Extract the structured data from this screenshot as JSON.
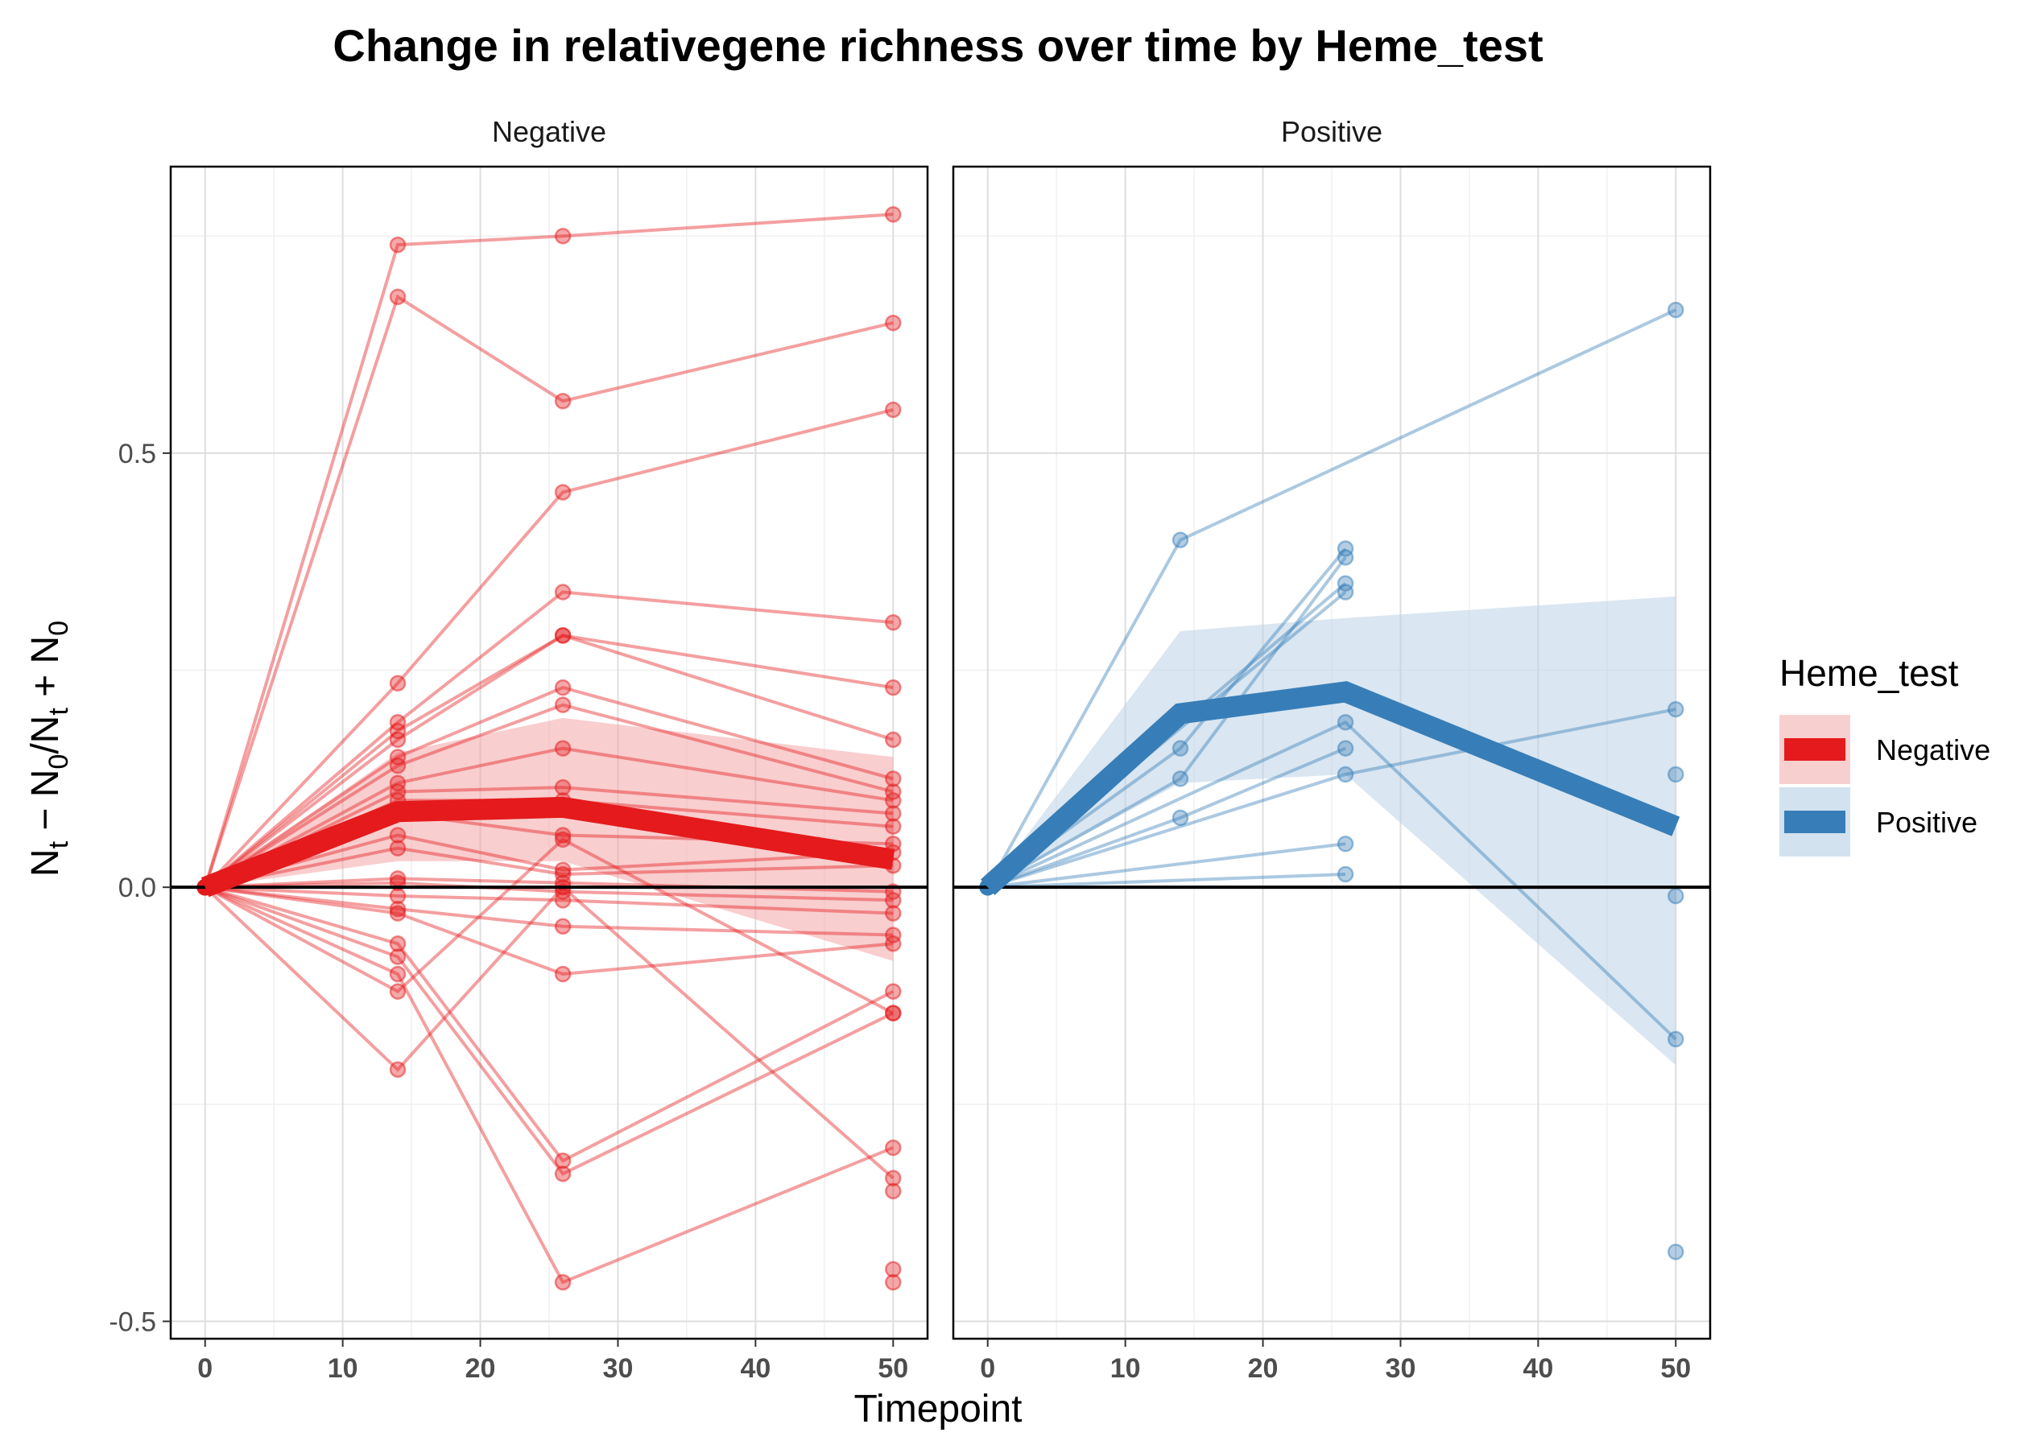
{
  "chart_data": {
    "type": "line",
    "title": "Change in relativegene richness over time by Heme_test",
    "xlabel": "Timepoint",
    "ylabel": "N_t − N_0/N_t + N_0",
    "ylabel_parts": {
      "n": "N",
      "t": "t",
      "zero": "0",
      "minus": " − ",
      "slash": "/",
      "plus": " + "
    },
    "xlim": [
      -2.5,
      52.5
    ],
    "ylim": [
      -0.52,
      0.83
    ],
    "x_ticks": [
      0,
      10,
      20,
      30,
      40,
      50
    ],
    "x_tick_labels": [
      "0",
      "10",
      "20",
      "30",
      "40",
      "50"
    ],
    "y_ticks": [
      -0.5,
      0.0,
      0.5
    ],
    "y_tick_labels": [
      "-0.5",
      "0.0",
      "0.5"
    ],
    "y_minor_ticks": [
      -0.25,
      0.25,
      0.75
    ],
    "x_minor_ticks": [
      5,
      15,
      25,
      35,
      45
    ],
    "reference_line_y": 0,
    "grid": true,
    "legend": {
      "title": "Heme_test",
      "position": "right",
      "entries": [
        {
          "label": "Negative",
          "color": "#E41A1C",
          "fill": "#F8CFCF"
        },
        {
          "label": "Positive",
          "color": "#377EB8",
          "fill": "#D3E2EF"
        }
      ]
    },
    "panels": [
      {
        "name": "Negative",
        "color": "#E41A1C",
        "band_color": "#F4A6A7",
        "mean": {
          "x": [
            0,
            14,
            26,
            50
          ],
          "y": [
            0.0,
            0.087,
            0.092,
            0.032
          ]
        },
        "band": {
          "x": [
            0,
            14,
            26,
            50
          ],
          "lower": [
            0.0,
            0.03,
            0.03,
            -0.085
          ],
          "upper": [
            0.0,
            0.155,
            0.195,
            0.15
          ]
        },
        "subjects": [
          {
            "x": [
              0,
              14,
              26,
              50
            ],
            "y": [
              0,
              0.74,
              0.75,
              0.775
            ]
          },
          {
            "x": [
              0,
              14,
              26,
              50
            ],
            "y": [
              0,
              0.68,
              0.56,
              0.65
            ]
          },
          {
            "x": [
              0,
              14,
              26,
              50
            ],
            "y": [
              0,
              0.235,
              0.455,
              0.55
            ]
          },
          {
            "x": [
              0,
              14,
              26,
              50
            ],
            "y": [
              0,
              0.19,
              0.34,
              0.305
            ]
          },
          {
            "x": [
              0,
              14,
              26,
              50
            ],
            "y": [
              0,
              0.18,
              0.29,
              0.23
            ]
          },
          {
            "x": [
              0,
              14,
              26,
              50
            ],
            "y": [
              0,
              0.17,
              0.29,
              0.17
            ]
          },
          {
            "x": [
              0,
              14,
              26,
              50
            ],
            "y": [
              0,
              0.15,
              0.23,
              0.125
            ]
          },
          {
            "x": [
              0,
              14,
              26,
              50
            ],
            "y": [
              0,
              0.14,
              0.21,
              0.11
            ]
          },
          {
            "x": [
              0,
              14,
              26,
              50
            ],
            "y": [
              0,
              0.12,
              0.16,
              0.1
            ]
          },
          {
            "x": [
              0,
              14,
              26,
              50
            ],
            "y": [
              0,
              0.11,
              0.115,
              0.085
            ]
          },
          {
            "x": [
              0,
              14,
              26,
              50
            ],
            "y": [
              0,
              0.1,
              0.1,
              0.07
            ]
          },
          {
            "x": [
              0,
              14,
              26,
              50
            ],
            "y": [
              0,
              0.085,
              0.06,
              0.05
            ]
          },
          {
            "x": [
              0,
              14,
              26,
              50
            ],
            "y": [
              0,
              0.06,
              0.02,
              0.04
            ]
          },
          {
            "x": [
              0,
              14,
              26,
              50
            ],
            "y": [
              0,
              0.045,
              0.015,
              0.025
            ]
          },
          {
            "x": [
              0,
              14,
              26,
              50
            ],
            "y": [
              0,
              0.01,
              0.005,
              -0.005
            ]
          },
          {
            "x": [
              0,
              14,
              26,
              50
            ],
            "y": [
              0,
              0.005,
              -0.005,
              -0.015
            ]
          },
          {
            "x": [
              0,
              14,
              26,
              50
            ],
            "y": [
              0,
              -0.01,
              -0.015,
              -0.03
            ]
          },
          {
            "x": [
              0,
              14,
              26,
              50
            ],
            "y": [
              0,
              -0.025,
              -0.045,
              -0.055
            ]
          },
          {
            "x": [
              0,
              14,
              26,
              50
            ],
            "y": [
              0,
              -0.03,
              -0.1,
              -0.065
            ]
          },
          {
            "x": [
              0,
              14,
              26,
              50
            ],
            "y": [
              0,
              -0.065,
              -0.315,
              -0.12
            ]
          },
          {
            "x": [
              0,
              14,
              26,
              50
            ],
            "y": [
              0,
              -0.08,
              -0.33,
              -0.145
            ]
          },
          {
            "x": [
              0,
              14,
              26,
              50
            ],
            "y": [
              0,
              -0.1,
              -0.455,
              -0.3
            ]
          },
          {
            "x": [
              0,
              14,
              26,
              50
            ],
            "y": [
              0,
              -0.12,
              0.055,
              -0.145
            ]
          },
          {
            "x": [
              0,
              14,
              26,
              50
            ],
            "y": [
              0,
              -0.21,
              0.0,
              -0.335
            ]
          }
        ],
        "extra_points": [
          {
            "x": 50,
            "y": -0.35
          },
          {
            "x": 50,
            "y": -0.44
          },
          {
            "x": 50,
            "y": -0.455
          }
        ]
      },
      {
        "name": "Positive",
        "color": "#377EB8",
        "band_color": "#BBD1E6",
        "mean": {
          "x": [
            0,
            14,
            26,
            50
          ],
          "y": [
            0.0,
            0.2,
            0.225,
            0.07
          ]
        },
        "band": {
          "x": [
            0,
            14,
            26,
            50
          ],
          "lower": [
            0.0,
            0.12,
            0.13,
            -0.205
          ],
          "upper": [
            0.0,
            0.295,
            0.31,
            0.335
          ]
        },
        "subjects": [
          {
            "x": [
              0,
              14,
              50
            ],
            "y": [
              0,
              0.4,
              0.665
            ]
          },
          {
            "x": [
              0,
              14,
              26
            ],
            "y": [
              0,
              0.16,
              0.39
            ]
          },
          {
            "x": [
              0,
              14,
              26
            ],
            "y": [
              0,
              0.125,
              0.38
            ]
          },
          {
            "x": [
              0,
              26,
              50
            ],
            "y": [
              0,
              0.13,
              0.205
            ]
          },
          {
            "x": [
              0,
              26,
              50
            ],
            "y": [
              0,
              0.19,
              -0.175
            ]
          },
          {
            "x": [
              0,
              14,
              26
            ],
            "y": [
              0,
              0.08,
              0.16
            ]
          },
          {
            "x": [
              0,
              26
            ],
            "y": [
              0,
              0.35
            ]
          },
          {
            "x": [
              0,
              26
            ],
            "y": [
              0,
              0.05
            ]
          },
          {
            "x": [
              0,
              26
            ],
            "y": [
              0,
              0.015
            ]
          },
          {
            "x": [
              0,
              26
            ],
            "y": [
              0,
              0.34
            ]
          }
        ],
        "extra_points": [
          {
            "x": 50,
            "y": 0.13
          },
          {
            "x": 50,
            "y": -0.01
          },
          {
            "x": 50,
            "y": -0.42
          }
        ]
      }
    ]
  }
}
